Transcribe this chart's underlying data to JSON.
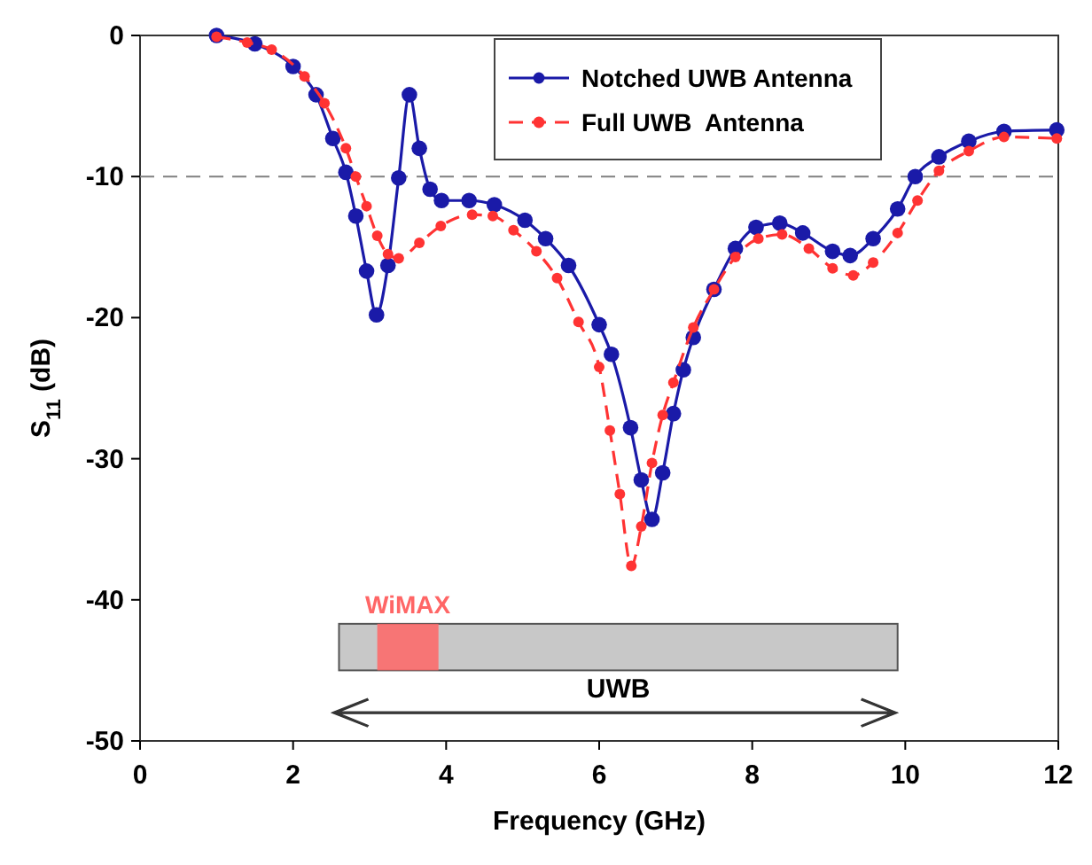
{
  "chart_data": {
    "type": "line",
    "xlabel": "Frequency (GHz)",
    "ylabel": "S$_{11}$ (dB)",
    "xlim": [
      0,
      12
    ],
    "xticks": [
      0,
      2,
      4,
      6,
      8,
      10,
      12
    ],
    "ylim": [
      -50,
      0
    ],
    "yticks": [
      -50,
      -40,
      -30,
      -20,
      -10,
      0
    ],
    "grid": false,
    "legend": "top",
    "marker": "circle",
    "series": [
      {
        "name": "Notched UWB Antenna",
        "color": "#1a1aa8",
        "line_style": "solid",
        "x": [
          1.0,
          1.5,
          2.0,
          2.3,
          2.52,
          2.69,
          2.82,
          2.96,
          3.09,
          3.24,
          3.38,
          3.52,
          3.65,
          3.79,
          3.94,
          4.3,
          4.63,
          5.03,
          5.3,
          5.6,
          6.0,
          6.16,
          6.41,
          6.55,
          6.69,
          6.83,
          6.97,
          7.1,
          7.23,
          7.5,
          7.78,
          8.05,
          8.36,
          8.66,
          9.05,
          9.28,
          9.58,
          9.9,
          10.13,
          10.44,
          10.83,
          11.29,
          11.98
        ],
        "values": [
          0,
          -0.6,
          -2.2,
          -4.2,
          -7.3,
          -9.7,
          -12.8,
          -16.7,
          -19.8,
          -16.3,
          -10.1,
          -4.2,
          -8.0,
          -10.9,
          -11.7,
          -11.7,
          -12.0,
          -13.1,
          -14.4,
          -16.3,
          -20.5,
          -22.6,
          -27.8,
          -31.5,
          -34.3,
          -31.0,
          -26.8,
          -23.7,
          -21.4,
          -18.0,
          -15.1,
          -13.6,
          -13.3,
          -14.0,
          -15.3,
          -15.6,
          -14.4,
          -12.3,
          -10.0,
          -8.6,
          -7.5,
          -6.8,
          -6.7
        ]
      },
      {
        "name": "Full UWB  Antenna",
        "color": "#ff3333",
        "line_style": "dashed",
        "x": [
          1.0,
          1.4,
          1.72,
          2.15,
          2.41,
          2.69,
          2.82,
          2.96,
          3.1,
          3.24,
          3.38,
          3.65,
          3.93,
          4.34,
          4.61,
          4.88,
          5.18,
          5.45,
          5.73,
          6.0,
          6.14,
          6.27,
          6.42,
          6.55,
          6.69,
          6.83,
          6.97,
          7.23,
          7.5,
          7.78,
          8.08,
          8.39,
          8.74,
          9.05,
          9.32,
          9.58,
          9.9,
          10.16,
          10.44,
          10.83,
          11.29,
          11.98
        ],
        "values": [
          -0.1,
          -0.5,
          -1.0,
          -2.9,
          -4.8,
          -8.0,
          -10.0,
          -12.1,
          -14.2,
          -15.5,
          -15.8,
          -14.7,
          -13.5,
          -12.7,
          -12.8,
          -13.8,
          -15.3,
          -17.2,
          -20.3,
          -23.5,
          -28.0,
          -32.5,
          -37.6,
          -34.8,
          -30.3,
          -26.9,
          -24.6,
          -20.7,
          -18.0,
          -15.7,
          -14.4,
          -14.1,
          -15.1,
          -16.5,
          -17.0,
          -16.1,
          -14.0,
          -11.7,
          -9.6,
          -8.2,
          -7.2,
          -7.3
        ]
      }
    ],
    "ref_lines": [
      {
        "axis": "y",
        "value": -10,
        "color": "#808080",
        "line_style": "dashed"
      }
    ],
    "bands": [
      {
        "axis": "x",
        "from": 2.6,
        "to": 9.9,
        "label": "UWB",
        "color": "#c8c8c8"
      },
      {
        "axis": "x",
        "from": 3.1,
        "to": 3.9,
        "label": "WiMAX",
        "color": "#ff6666"
      }
    ]
  }
}
